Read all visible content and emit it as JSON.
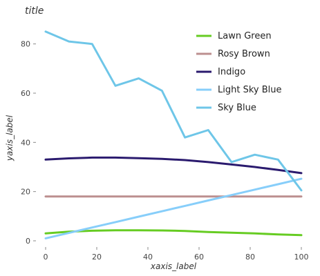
{
  "chart_data": {
    "type": "line",
    "title": "title",
    "xlabel": "xaxis_label",
    "ylabel": "yaxis_label",
    "xlim": [
      0,
      100
    ],
    "ylim": [
      0,
      90
    ],
    "x_ticks": [
      0,
      20,
      40,
      60,
      80,
      100
    ],
    "y_ticks": [
      0,
      20,
      40,
      60,
      80
    ],
    "grid": false,
    "legend_position": "top-right",
    "x": [
      0,
      9.1,
      18.2,
      27.3,
      36.4,
      45.5,
      54.5,
      63.6,
      72.7,
      81.8,
      90.9,
      100
    ],
    "series": [
      {
        "name": "Lawn Green",
        "color": "#7cfc00",
        "stroke": "#66cc22",
        "values": [
          3.0,
          3.7,
          4.1,
          4.3,
          4.3,
          4.2,
          4.0,
          3.6,
          3.3,
          3.0,
          2.6,
          2.3
        ]
      },
      {
        "name": "Rosy Brown",
        "color": "#bc8f8f",
        "values": [
          18,
          18,
          18,
          18,
          18,
          18,
          18,
          18,
          18,
          18,
          18,
          18
        ]
      },
      {
        "name": "Indigo",
        "color": "#2a1a6e",
        "values": [
          33,
          33.5,
          33.8,
          33.8,
          33.6,
          33.3,
          32.8,
          32.0,
          31.0,
          30.0,
          28.8,
          27.5
        ]
      },
      {
        "name": "Light Sky Blue",
        "color": "#87cefa",
        "values": [
          1.0,
          3.2,
          5.4,
          7.6,
          9.8,
          12.0,
          14.2,
          16.4,
          18.6,
          20.8,
          23.0,
          25.2
        ]
      },
      {
        "name": "Sky Blue",
        "color": "#6ec6e8",
        "values": [
          85,
          81,
          80,
          63,
          66,
          61,
          42,
          45,
          32,
          35,
          33,
          20.5
        ]
      }
    ]
  }
}
